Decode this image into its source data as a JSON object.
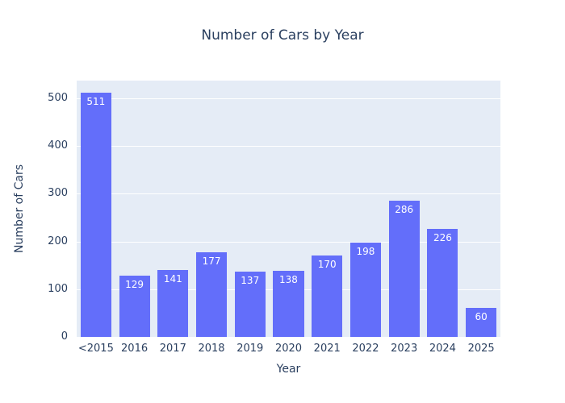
{
  "chart_data": {
    "type": "bar",
    "title": "Number of Cars by Year",
    "xlabel": "Year",
    "ylabel": "Number of Cars",
    "categories": [
      "<2015",
      "2016",
      "2017",
      "2018",
      "2019",
      "2020",
      "2021",
      "2022",
      "2023",
      "2024",
      "2025"
    ],
    "values": [
      511,
      129,
      141,
      177,
      137,
      138,
      170,
      198,
      286,
      226,
      60
    ],
    "bar_labels": [
      "511",
      "129",
      "141",
      "177",
      "137",
      "138",
      "170",
      "198",
      "286",
      "226",
      "60"
    ],
    "yticks": [
      0,
      100,
      200,
      300,
      400,
      500
    ],
    "ylim": [
      0,
      537
    ],
    "grid": true,
    "legend": false,
    "bar_label_position": "inside-top",
    "colors": {
      "bar": "#636efa",
      "plot_background": "#e5ecf6",
      "gridline": "#ffffff",
      "text": "#2a3f5f",
      "bar_label_text": "#ffffff"
    }
  }
}
